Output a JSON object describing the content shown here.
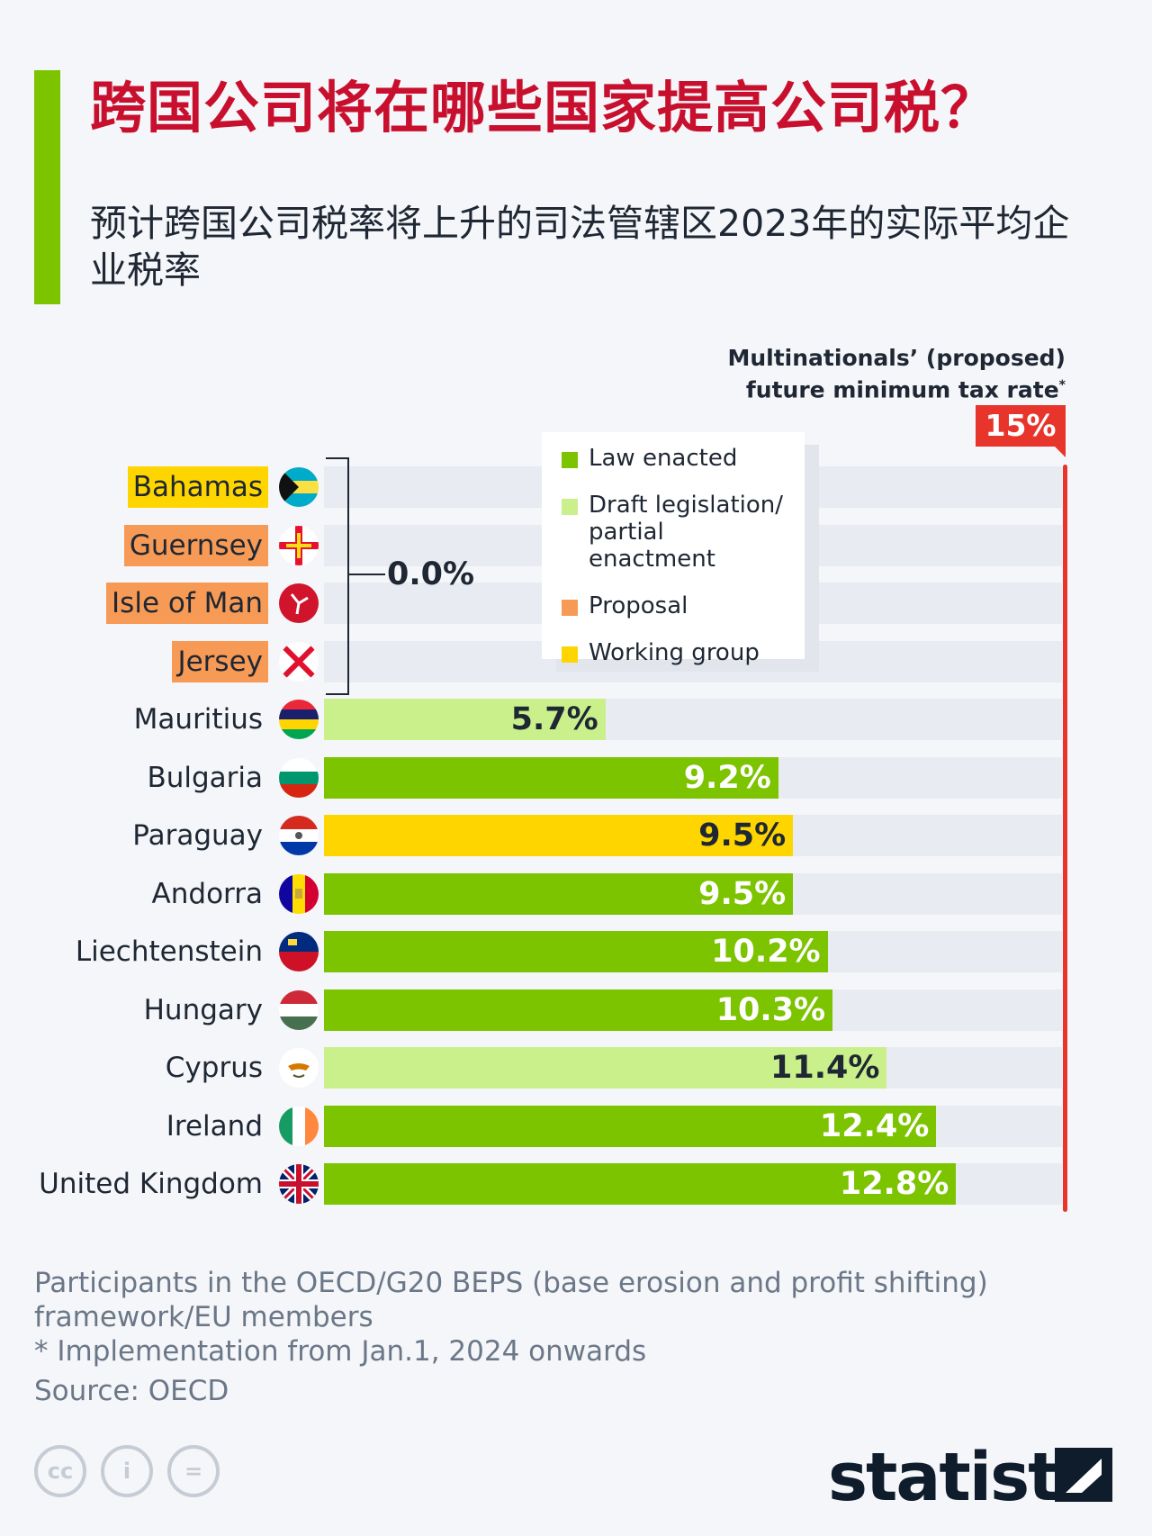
{
  "title": "跨国公司将在哪些国家提高公司税？",
  "subtitle": "预计跨国公司税率将上升的司法管辖区2023年的实际平均企业税率",
  "cap": {
    "label_line1": "Multinationals’ (proposed)",
    "label_line2": "future minimum tax rate",
    "asterisk": "*",
    "badge": "15%",
    "value": 15
  },
  "zero_group_label": "0.0%",
  "legend": [
    {
      "label": "Law enacted",
      "color": "#7cc300"
    },
    {
      "label": "Draft legislation/ partial enactment",
      "color": "#c9f08b"
    },
    {
      "label": "Proposal",
      "color": "#f79a55"
    },
    {
      "label": "Working group",
      "color": "#ffd500"
    }
  ],
  "chart_data": {
    "type": "bar",
    "orientation": "horizontal",
    "xlim": [
      0,
      15
    ],
    "categories": [
      "Bahamas",
      "Guernsey",
      "Isle of Man",
      "Jersey",
      "Mauritius",
      "Bulgaria",
      "Paraguay",
      "Andorra",
      "Liechtenstein",
      "Hungary",
      "Cyprus",
      "Ireland",
      "United Kingdom"
    ],
    "values": [
      0.0,
      0.0,
      0.0,
      0.0,
      5.7,
      9.2,
      9.5,
      9.5,
      10.2,
      10.3,
      11.4,
      12.4,
      12.8
    ],
    "value_labels": [
      "",
      "",
      "",
      "",
      "5.7%",
      "9.2%",
      "9.5%",
      "9.5%",
      "10.2%",
      "10.3%",
      "11.4%",
      "12.4%",
      "12.8%"
    ],
    "status": [
      "Working group",
      "Proposal",
      "Proposal",
      "Proposal",
      "Draft legislation/ partial enactment",
      "Law enacted",
      "Working group",
      "Law enacted",
      "Law enacted",
      "Law enacted",
      "Draft legislation/ partial enactment",
      "Law enacted",
      "Law enacted"
    ],
    "reference_line": 15
  },
  "flags": [
    "bahamas-flag-icon",
    "guernsey-flag-icon",
    "isle-of-man-flag-icon",
    "jersey-flag-icon",
    "mauritius-flag-icon",
    "bulgaria-flag-icon",
    "paraguay-flag-icon",
    "andorra-flag-icon",
    "liechtenstein-flag-icon",
    "hungary-flag-icon",
    "cyprus-flag-icon",
    "ireland-flag-icon",
    "uk-flag-icon"
  ],
  "footnotes": {
    "line1": "Participants in the OECD/G20 BEPS (base erosion and profit shifting) framework/EU members",
    "line2": "* Implementation from Jan.1, 2024 onwards",
    "source": "Source: OECD"
  },
  "brand": "statista"
}
